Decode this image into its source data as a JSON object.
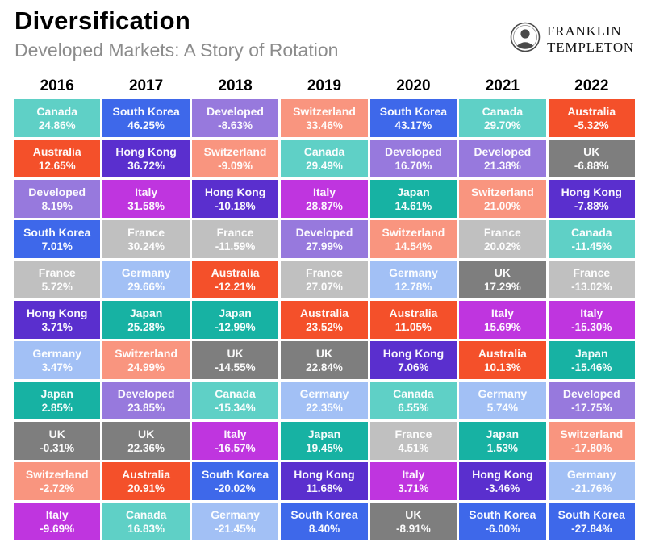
{
  "header": {
    "title": "Diversification",
    "subtitle": "Developed Markets: A Story of Rotation"
  },
  "logo": {
    "line1": "FRANKLIN",
    "line2": "TEMPLETON",
    "icon": "franklin-portrait-icon"
  },
  "colors": {
    "Canada": "#5fd0c6",
    "South Korea": "#3e68ea",
    "Developed": "#9779dd",
    "Switzerland": "#f9957f",
    "Australia": "#f4502a",
    "Hong Kong": "#5a2fce",
    "Italy": "#bf35df",
    "France": "#c0c0c0",
    "Germany": "#a2c0f5",
    "Japan": "#17b2a3",
    "UK": "#7e7e7e"
  },
  "chart_data": {
    "type": "table",
    "title": "Diversification",
    "subtitle": "Developed Markets: A Story of Rotation",
    "years": [
      "2016",
      "2017",
      "2018",
      "2019",
      "2020",
      "2021",
      "2022"
    ],
    "ranking": {
      "2016": [
        {
          "country": "Canada",
          "value": 24.86,
          "label": "24.86%"
        },
        {
          "country": "Australia",
          "value": 12.65,
          "label": "12.65%"
        },
        {
          "country": "Developed",
          "value": 8.19,
          "label": "8.19%"
        },
        {
          "country": "South Korea",
          "value": 7.01,
          "label": "7.01%"
        },
        {
          "country": "France",
          "value": 5.72,
          "label": "5.72%"
        },
        {
          "country": "Hong Kong",
          "value": 3.71,
          "label": "3.71%"
        },
        {
          "country": "Germany",
          "value": 3.47,
          "label": "3.47%"
        },
        {
          "country": "Japan",
          "value": 2.85,
          "label": "2.85%"
        },
        {
          "country": "UK",
          "value": -0.31,
          "label": "-0.31%"
        },
        {
          "country": "Switzerland",
          "value": -2.72,
          "label": "-2.72%"
        },
        {
          "country": "Italy",
          "value": -9.69,
          "label": "-9.69%"
        }
      ],
      "2017": [
        {
          "country": "South Korea",
          "value": 46.25,
          "label": "46.25%"
        },
        {
          "country": "Hong Kong",
          "value": 36.72,
          "label": "36.72%"
        },
        {
          "country": "Italy",
          "value": 31.58,
          "label": "31.58%"
        },
        {
          "country": "France",
          "value": 30.24,
          "label": "30.24%"
        },
        {
          "country": "Germany",
          "value": 29.66,
          "label": "29.66%"
        },
        {
          "country": "Japan",
          "value": 25.28,
          "label": "25.28%"
        },
        {
          "country": "Switzerland",
          "value": 24.99,
          "label": "24.99%"
        },
        {
          "country": "Developed",
          "value": 23.85,
          "label": "23.85%"
        },
        {
          "country": "UK",
          "value": 22.36,
          "label": "22.36%"
        },
        {
          "country": "Australia",
          "value": 20.91,
          "label": "20.91%"
        },
        {
          "country": "Canada",
          "value": 16.83,
          "label": "16.83%"
        }
      ],
      "2018": [
        {
          "country": "Developed",
          "value": -8.63,
          "label": "-8.63%"
        },
        {
          "country": "Switzerland",
          "value": -9.09,
          "label": "-9.09%"
        },
        {
          "country": "Hong Kong",
          "value": -10.18,
          "label": "-10.18%"
        },
        {
          "country": "France",
          "value": -11.59,
          "label": "-11.59%"
        },
        {
          "country": "Australia",
          "value": -12.21,
          "label": "-12.21%"
        },
        {
          "country": "Japan",
          "value": -12.99,
          "label": "-12.99%"
        },
        {
          "country": "UK",
          "value": -14.55,
          "label": "-14.55%"
        },
        {
          "country": "Canada",
          "value": -15.34,
          "label": "-15.34%"
        },
        {
          "country": "Italy",
          "value": -16.57,
          "label": "-16.57%"
        },
        {
          "country": "South Korea",
          "value": -20.02,
          "label": "-20.02%"
        },
        {
          "country": "Germany",
          "value": -21.45,
          "label": "-21.45%"
        }
      ],
      "2019": [
        {
          "country": "Switzerland",
          "value": 33.46,
          "label": "33.46%"
        },
        {
          "country": "Canada",
          "value": 29.49,
          "label": "29.49%"
        },
        {
          "country": "Italy",
          "value": 28.87,
          "label": "28.87%"
        },
        {
          "country": "Developed",
          "value": 27.99,
          "label": "27.99%"
        },
        {
          "country": "France",
          "value": 27.07,
          "label": "27.07%"
        },
        {
          "country": "Australia",
          "value": 23.52,
          "label": "23.52%"
        },
        {
          "country": "UK",
          "value": 22.84,
          "label": "22.84%"
        },
        {
          "country": "Germany",
          "value": 22.35,
          "label": "22.35%"
        },
        {
          "country": "Japan",
          "value": 19.45,
          "label": "19.45%"
        },
        {
          "country": "Hong Kong",
          "value": 11.68,
          "label": "11.68%"
        },
        {
          "country": "South Korea",
          "value": 8.4,
          "label": "8.40%"
        }
      ],
      "2020": [
        {
          "country": "South Korea",
          "value": 43.17,
          "label": "43.17%"
        },
        {
          "country": "Developed",
          "value": 16.7,
          "label": "16.70%"
        },
        {
          "country": "Japan",
          "value": 14.61,
          "label": "14.61%"
        },
        {
          "country": "Switzerland",
          "value": 14.54,
          "label": "14.54%"
        },
        {
          "country": "Germany",
          "value": 12.78,
          "label": "12.78%"
        },
        {
          "country": "Australia",
          "value": 11.05,
          "label": "11.05%"
        },
        {
          "country": "Hong Kong",
          "value": 7.06,
          "label": "7.06%"
        },
        {
          "country": "Canada",
          "value": 6.55,
          "label": "6.55%"
        },
        {
          "country": "France",
          "value": 4.51,
          "label": "4.51%"
        },
        {
          "country": "Italy",
          "value": 3.71,
          "label": "3.71%"
        },
        {
          "country": "UK",
          "value": -8.91,
          "label": "-8.91%"
        }
      ],
      "2021": [
        {
          "country": "Canada",
          "value": 29.7,
          "label": "29.70%"
        },
        {
          "country": "Developed",
          "value": 21.38,
          "label": "21.38%"
        },
        {
          "country": "Switzerland",
          "value": 21.0,
          "label": "21.00%"
        },
        {
          "country": "France",
          "value": 20.02,
          "label": "20.02%"
        },
        {
          "country": "UK",
          "value": 17.29,
          "label": "17.29%"
        },
        {
          "country": "Italy",
          "value": 15.69,
          "label": "15.69%"
        },
        {
          "country": "Australia",
          "value": 10.13,
          "label": "10.13%"
        },
        {
          "country": "Germany",
          "value": 5.74,
          "label": "5.74%"
        },
        {
          "country": "Japan",
          "value": 1.53,
          "label": "1.53%"
        },
        {
          "country": "Hong Kong",
          "value": -3.46,
          "label": "-3.46%"
        },
        {
          "country": "South Korea",
          "value": -6.0,
          "label": "-6.00%"
        }
      ],
      "2022": [
        {
          "country": "Australia",
          "value": -5.32,
          "label": "-5.32%"
        },
        {
          "country": "UK",
          "value": -6.88,
          "label": "-6.88%"
        },
        {
          "country": "Hong Kong",
          "value": -7.88,
          "label": "-7.88%"
        },
        {
          "country": "Canada",
          "value": -11.45,
          "label": "-11.45%"
        },
        {
          "country": "France",
          "value": -13.02,
          "label": "-13.02%"
        },
        {
          "country": "Italy",
          "value": -15.3,
          "label": "-15.30%"
        },
        {
          "country": "Japan",
          "value": -15.46,
          "label": "-15.46%"
        },
        {
          "country": "Developed",
          "value": -17.75,
          "label": "-17.75%"
        },
        {
          "country": "Switzerland",
          "value": -17.8,
          "label": "-17.80%"
        },
        {
          "country": "Germany",
          "value": -21.76,
          "label": "-21.76%"
        },
        {
          "country": "South Korea",
          "value": -27.84,
          "label": "-27.84%"
        }
      ]
    }
  }
}
